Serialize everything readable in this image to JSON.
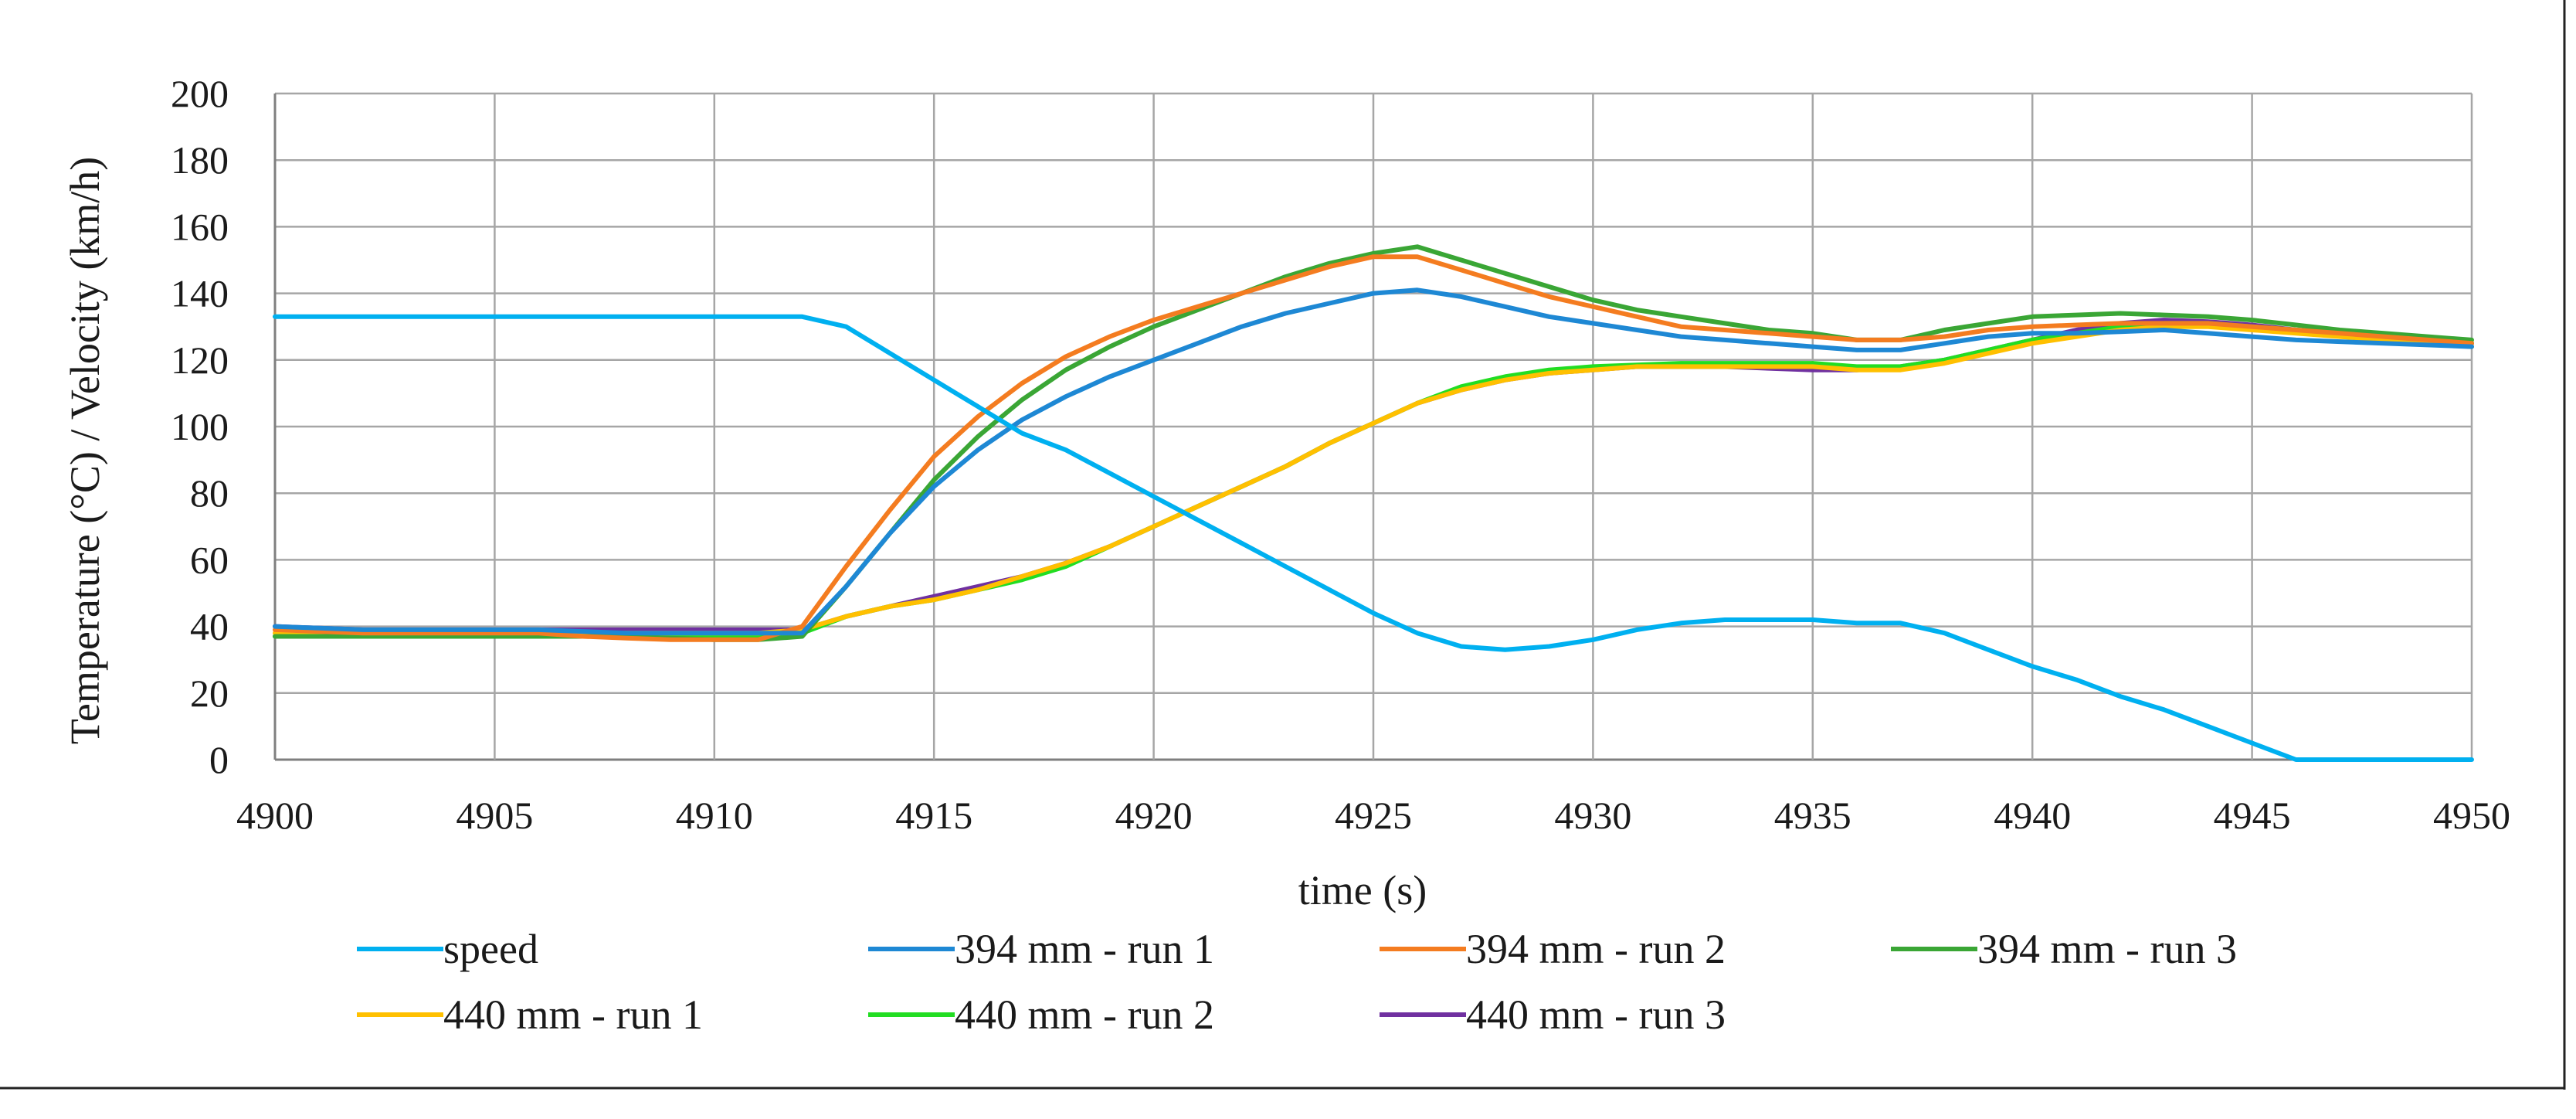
{
  "chart_data": {
    "type": "line",
    "title": "",
    "xlabel": "time (s)",
    "ylabel": "Temperature (°C) / Velocity (km/h)",
    "xlim": [
      4900,
      4950
    ],
    "ylim": [
      0,
      200
    ],
    "x_ticks": [
      "4900",
      "4905",
      "4910",
      "4915",
      "4920",
      "4925",
      "4930",
      "4935",
      "4940",
      "4945",
      "4950"
    ],
    "y_ticks": [
      "0",
      "20",
      "40",
      "60",
      "80",
      "100",
      "120",
      "140",
      "160",
      "180",
      "200"
    ],
    "grid": true,
    "legend_position": "bottom",
    "x": [
      4900,
      4901,
      4902,
      4903,
      4904,
      4905,
      4906,
      4907,
      4908,
      4909,
      4910,
      4911,
      4912,
      4913,
      4914,
      4915,
      4916,
      4917,
      4918,
      4919,
      4920,
      4921,
      4922,
      4923,
      4924,
      4925,
      4926,
      4927,
      4928,
      4929,
      4930,
      4931,
      4932,
      4933,
      4934,
      4935,
      4936,
      4937,
      4938,
      4939,
      4940,
      4941,
      4942,
      4943,
      4944,
      4945,
      4946,
      4947,
      4948,
      4949,
      4950
    ],
    "series": [
      {
        "name": "speed",
        "color": "#00b0f0",
        "values": [
          133,
          133,
          133,
          133,
          133,
          133,
          133,
          133,
          133,
          133,
          133,
          133,
          133,
          130,
          122,
          114,
          106,
          98,
          93,
          86,
          79,
          72,
          65,
          58,
          51,
          44,
          38,
          34,
          33,
          34,
          36,
          39,
          41,
          42,
          42,
          42,
          41,
          41,
          38,
          33,
          28,
          24,
          19,
          15,
          10,
          5,
          0,
          0,
          0,
          0,
          0
        ]
      },
      {
        "name": "394 mm - run 1",
        "color": "#1e88d4",
        "values": [
          40,
          39.5,
          39,
          39,
          39,
          39,
          39,
          38.5,
          38,
          38,
          38,
          38,
          38,
          52,
          68,
          82,
          93,
          102,
          109,
          115,
          120,
          125,
          130,
          134,
          137,
          140,
          141,
          139,
          136,
          133,
          131,
          129,
          127,
          126,
          125,
          124,
          123,
          123,
          125,
          127,
          128,
          128,
          128.5,
          129,
          128,
          127,
          126,
          125.5,
          125,
          124.5,
          124
        ]
      },
      {
        "name": "394 mm - run 2",
        "color": "#f47c20",
        "values": [
          39,
          38.5,
          38,
          38,
          38,
          38,
          38,
          37,
          36.5,
          36,
          36,
          36,
          40,
          58,
          75,
          91,
          103,
          113,
          121,
          127,
          132,
          136,
          140,
          144,
          148,
          151,
          151,
          147,
          143,
          139,
          136,
          133,
          130,
          129,
          128,
          127,
          126,
          126,
          127,
          129,
          130,
          130.5,
          131,
          131,
          131,
          130,
          129,
          128,
          127,
          126,
          125
        ]
      },
      {
        "name": "394 mm - run 3",
        "color": "#3aa635",
        "values": [
          37,
          37,
          37,
          37,
          37,
          37,
          37,
          37,
          37,
          36.5,
          36,
          36,
          37,
          52,
          68,
          84,
          97,
          108,
          117,
          124,
          130,
          135,
          140,
          145,
          149,
          152,
          154,
          150,
          146,
          142,
          138,
          135,
          133,
          131,
          129,
          128,
          126,
          126,
          129,
          131,
          133,
          133.5,
          134,
          133.5,
          133,
          132,
          130.5,
          129,
          128,
          127,
          126
        ]
      },
      {
        "name": "440 mm - run 1",
        "color": "#ffc000",
        "values": [
          38,
          38,
          38,
          38,
          38,
          38,
          38,
          38,
          38,
          38,
          38,
          38,
          39,
          43,
          46,
          48,
          51,
          55,
          59,
          64,
          70,
          76,
          82,
          88,
          95,
          101,
          107,
          111,
          114,
          116,
          117,
          118,
          118,
          118,
          118,
          118,
          117,
          117,
          119,
          122,
          125,
          127,
          129,
          130,
          130,
          129,
          128,
          127,
          126,
          125,
          124
        ]
      },
      {
        "name": "440 mm - run 2",
        "color": "#22dd22",
        "values": [
          37,
          37,
          37,
          37,
          37,
          37,
          37,
          37,
          37,
          37,
          37,
          37,
          38,
          43,
          46,
          48,
          51,
          54,
          58,
          64,
          70,
          76,
          82,
          88,
          95,
          101,
          107,
          112,
          115,
          117,
          118,
          118.5,
          119,
          119,
          119,
          119,
          118,
          118,
          120,
          123,
          126,
          128,
          130,
          131,
          131,
          130,
          129,
          128,
          127,
          126,
          125
        ]
      },
      {
        "name": "440 mm - run 3",
        "color": "#7030a0",
        "values": [
          40,
          39.5,
          39,
          39,
          39,
          39,
          39,
          39,
          39,
          39,
          39,
          39,
          39,
          43,
          46,
          49,
          52,
          55,
          59,
          64,
          70,
          76,
          82,
          88,
          95,
          101,
          107,
          111,
          114,
          116,
          117,
          118,
          118,
          118,
          117.5,
          117,
          117,
          118,
          120,
          123,
          126,
          129,
          131,
          132,
          131.5,
          130.5,
          129,
          128,
          127,
          126,
          125
        ]
      }
    ]
  }
}
